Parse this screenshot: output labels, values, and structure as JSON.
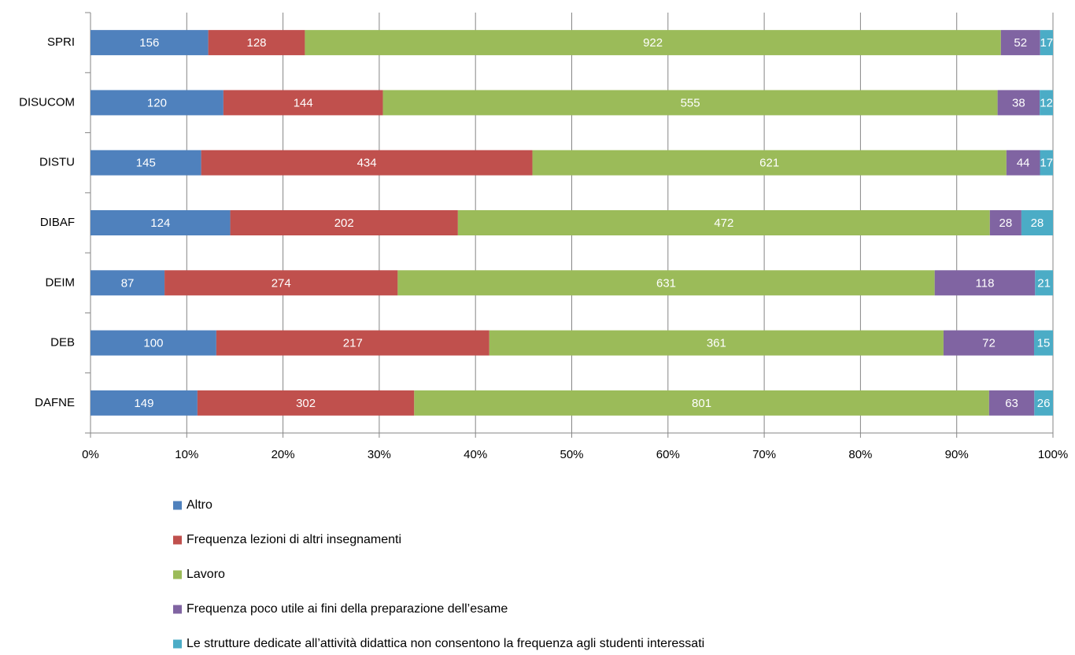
{
  "chart_data": {
    "type": "bar",
    "orientation": "horizontal",
    "stacking": "percent",
    "categories": [
      "SPRI",
      "DISUCOM",
      "DISTU",
      "DIBAF",
      "DEIM",
      "DEB",
      "DAFNE"
    ],
    "series": [
      {
        "name": "Altro",
        "color": "#4f81bd",
        "values": [
          156,
          120,
          145,
          124,
          87,
          100,
          149
        ]
      },
      {
        "name": "Frequenza lezioni di altri insegnamenti",
        "color": "#c0504d",
        "values": [
          128,
          144,
          434,
          202,
          274,
          217,
          302
        ]
      },
      {
        "name": "Lavoro",
        "color": "#9bbb59",
        "values": [
          922,
          555,
          621,
          472,
          631,
          361,
          801
        ]
      },
      {
        "name": "Frequenza poco utile ai fini della preparazione dell’esame",
        "color": "#8064a2",
        "values": [
          52,
          38,
          44,
          28,
          118,
          72,
          63
        ]
      },
      {
        "name": "Le strutture dedicate all’attività didattica non consentono la frequenza agli studenti interessati",
        "color": "#4bacc6",
        "values": [
          17,
          12,
          17,
          28,
          21,
          15,
          26
        ]
      }
    ],
    "xlim": [
      0,
      100
    ],
    "xticks": [
      {
        "value": 0,
        "label": "0%"
      },
      {
        "value": 10,
        "label": "10%"
      },
      {
        "value": 20,
        "label": "20%"
      },
      {
        "value": 30,
        "label": "30%"
      },
      {
        "value": 40,
        "label": "40%"
      },
      {
        "value": 50,
        "label": "50%"
      },
      {
        "value": 60,
        "label": "60%"
      },
      {
        "value": 70,
        "label": "70%"
      },
      {
        "value": 80,
        "label": "80%"
      },
      {
        "value": 90,
        "label": "90%"
      },
      {
        "value": 100,
        "label": "100%"
      }
    ],
    "grid": true,
    "legend": "bottom"
  }
}
